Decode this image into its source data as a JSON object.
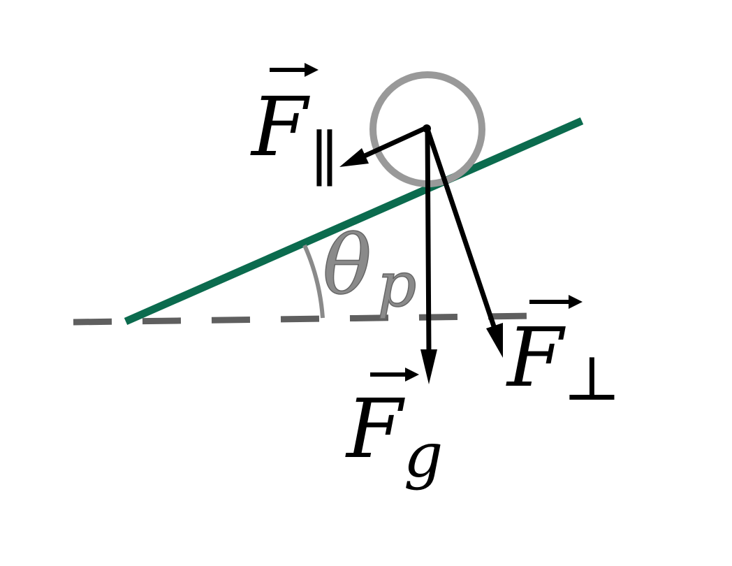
{
  "diagram": {
    "labels": {
      "f_parallel_main": "F",
      "f_parallel_sub": "∥",
      "f_perp_main": "F",
      "f_perp_sub": "⊥",
      "f_gravity_main": "F",
      "f_gravity_sub": "g",
      "angle_main": "θ",
      "angle_sub": "p"
    },
    "colors": {
      "incline": "#0b6b4e",
      "ground": "#5f5f5f",
      "ball": "#999999",
      "arrows": "#000000",
      "angle": "#8a8a8a"
    }
  }
}
